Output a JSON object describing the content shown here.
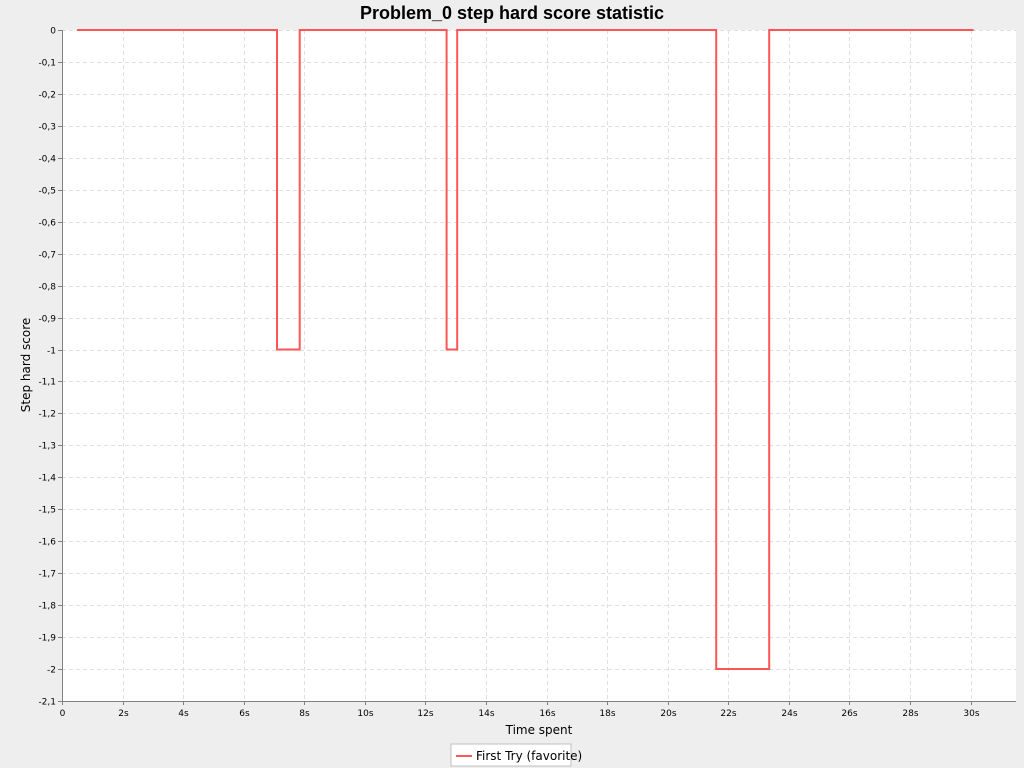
{
  "chart_data": {
    "type": "line",
    "title": "Problem_0 step hard score statistic",
    "xlabel": "Time spent",
    "ylabel": "Step hard score",
    "xlim": [
      0,
      31.5
    ],
    "ylim": [
      -2.1,
      0
    ],
    "x_ticks": [
      {
        "value": 0,
        "label": "0"
      },
      {
        "value": 2,
        "label": "2s"
      },
      {
        "value": 4,
        "label": "4s"
      },
      {
        "value": 6,
        "label": "6s"
      },
      {
        "value": 8,
        "label": "8s"
      },
      {
        "value": 10,
        "label": "10s"
      },
      {
        "value": 12,
        "label": "12s"
      },
      {
        "value": 14,
        "label": "14s"
      },
      {
        "value": 16,
        "label": "16s"
      },
      {
        "value": 18,
        "label": "18s"
      },
      {
        "value": 20,
        "label": "20s"
      },
      {
        "value": 22,
        "label": "22s"
      },
      {
        "value": 24,
        "label": "24s"
      },
      {
        "value": 26,
        "label": "26s"
      },
      {
        "value": 28,
        "label": "28s"
      },
      {
        "value": 30,
        "label": "30s"
      }
    ],
    "y_ticks": [
      {
        "value": 0,
        "label": "0"
      },
      {
        "value": -0.1,
        "label": "-0,1"
      },
      {
        "value": -0.2,
        "label": "-0,2"
      },
      {
        "value": -0.3,
        "label": "-0,3"
      },
      {
        "value": -0.4,
        "label": "-0,4"
      },
      {
        "value": -0.5,
        "label": "-0,5"
      },
      {
        "value": -0.6,
        "label": "-0,6"
      },
      {
        "value": -0.7,
        "label": "-0,7"
      },
      {
        "value": -0.8,
        "label": "-0,8"
      },
      {
        "value": -0.9,
        "label": "-0,9"
      },
      {
        "value": -1.0,
        "label": "-1"
      },
      {
        "value": -1.1,
        "label": "-1,1"
      },
      {
        "value": -1.2,
        "label": "-1,2"
      },
      {
        "value": -1.3,
        "label": "-1,3"
      },
      {
        "value": -1.4,
        "label": "-1,4"
      },
      {
        "value": -1.5,
        "label": "-1,5"
      },
      {
        "value": -1.6,
        "label": "-1,6"
      },
      {
        "value": -1.7,
        "label": "-1,7"
      },
      {
        "value": -1.8,
        "label": "-1,8"
      },
      {
        "value": -1.9,
        "label": "-1,9"
      },
      {
        "value": -2.0,
        "label": "-2"
      },
      {
        "value": -2.1,
        "label": "-2,1"
      }
    ],
    "grid": true,
    "legend_position": "bottom",
    "series": [
      {
        "name": "First Try (favorite)",
        "color": "#ff5555",
        "x": [
          0.5,
          7.1,
          7.1,
          7.85,
          7.85,
          12.7,
          12.7,
          13.05,
          13.05,
          21.6,
          21.6,
          23.35,
          23.35,
          30.1
        ],
        "y": [
          0,
          0,
          -1,
          -1,
          0,
          0,
          -1,
          -1,
          0,
          0,
          -2,
          -2,
          0,
          0
        ]
      }
    ]
  }
}
